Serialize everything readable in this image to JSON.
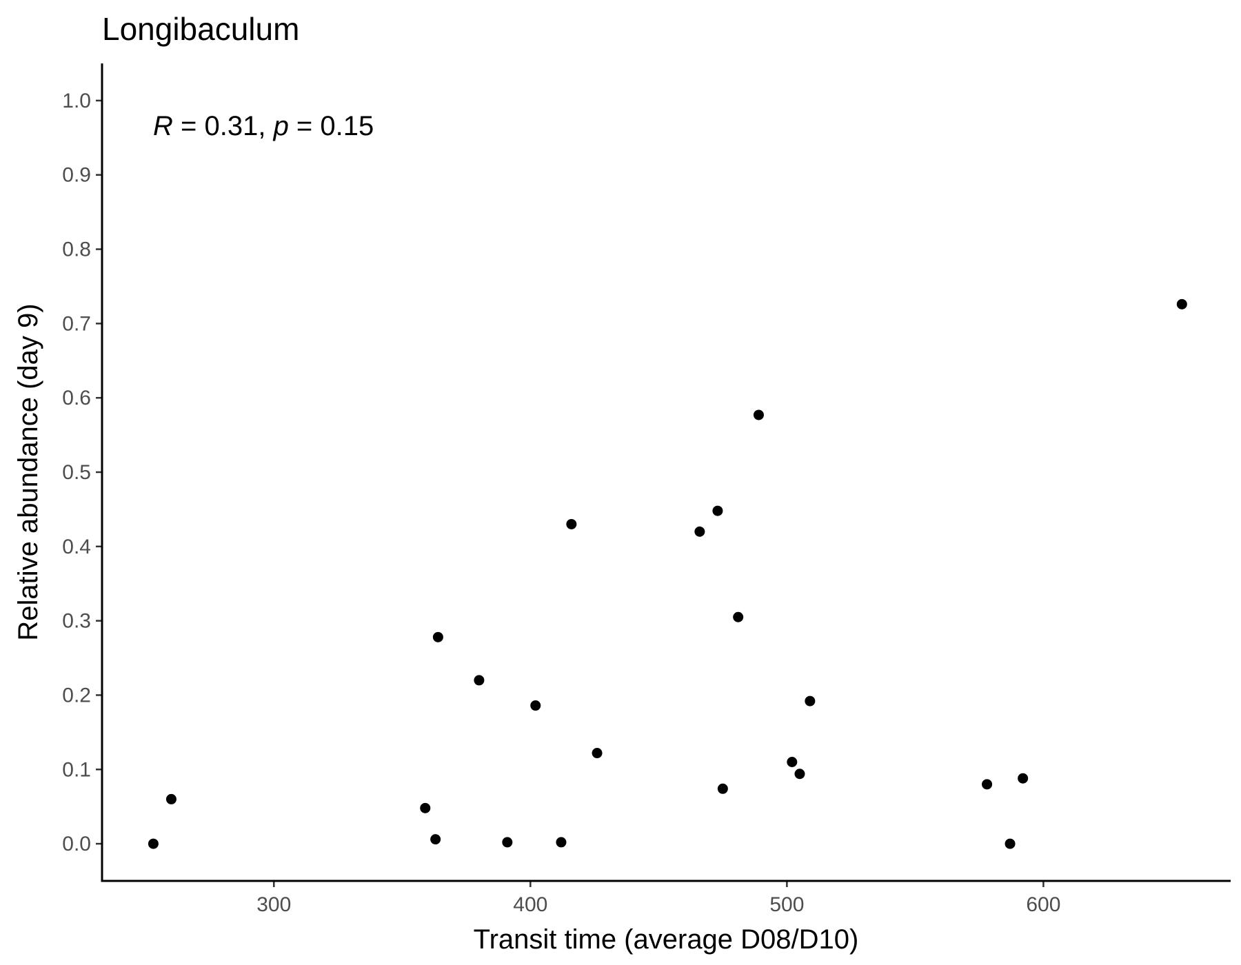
{
  "chart_data": {
    "type": "scatter",
    "title": "Longibaculum",
    "xlabel": "Transit time (average D08/D10)",
    "ylabel": "Relative abundance (day 9)",
    "xlim": [
      233,
      673
    ],
    "ylim": [
      -0.05,
      1.05
    ],
    "xticks": [
      300,
      400,
      500,
      600
    ],
    "yticks": [
      0.0,
      0.1,
      0.2,
      0.3,
      0.4,
      0.5,
      0.6,
      0.7,
      0.8,
      0.9,
      1.0
    ],
    "xtick_labels": [
      "300",
      "400",
      "500",
      "600"
    ],
    "ytick_labels": [
      "0.0",
      "0.1",
      "0.2",
      "0.3",
      "0.4",
      "0.5",
      "0.6",
      "0.7",
      "0.8",
      "0.9",
      "1.0"
    ],
    "grid": false,
    "point_color": "#000000",
    "annotation": {
      "r_symbol": "R",
      "r_text": " = 0.31, ",
      "p_symbol": "p",
      "p_text": " = 0.15"
    },
    "points": [
      {
        "x": 253,
        "y": 0.0
      },
      {
        "x": 260,
        "y": 0.06
      },
      {
        "x": 359,
        "y": 0.048
      },
      {
        "x": 363,
        "y": 0.006
      },
      {
        "x": 364,
        "y": 0.278
      },
      {
        "x": 380,
        "y": 0.22
      },
      {
        "x": 391,
        "y": 0.002
      },
      {
        "x": 402,
        "y": 0.186
      },
      {
        "x": 412,
        "y": 0.002
      },
      {
        "x": 416,
        "y": 0.43
      },
      {
        "x": 426,
        "y": 0.122
      },
      {
        "x": 466,
        "y": 0.42
      },
      {
        "x": 473,
        "y": 0.448
      },
      {
        "x": 475,
        "y": 0.074
      },
      {
        "x": 481,
        "y": 0.305
      },
      {
        "x": 489,
        "y": 0.577
      },
      {
        "x": 502,
        "y": 0.11
      },
      {
        "x": 505,
        "y": 0.094
      },
      {
        "x": 509,
        "y": 0.192
      },
      {
        "x": 578,
        "y": 0.08
      },
      {
        "x": 587,
        "y": 0.0
      },
      {
        "x": 592,
        "y": 0.088
      },
      {
        "x": 654,
        "y": 0.726
      }
    ]
  }
}
